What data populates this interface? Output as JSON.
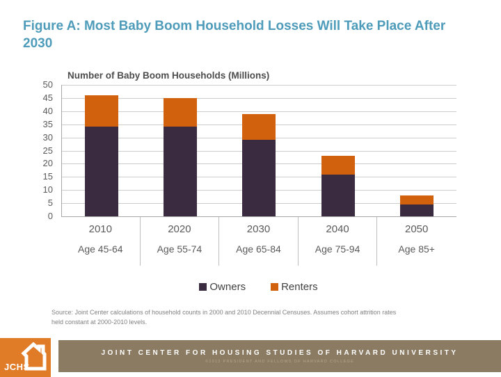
{
  "slide": {
    "title": "Figure A: Most Baby Boom Household Losses Will Take Place After 2030"
  },
  "chart_data": {
    "type": "bar",
    "stacked": true,
    "title": "Number of Baby Boom Households (Millions)",
    "categories": [
      "2010",
      "2020",
      "2030",
      "2040",
      "2050"
    ],
    "category_sublabels": [
      "Age 45-64",
      "Age 55-74",
      "Age 65-84",
      "Age 75-94",
      "Age 85+"
    ],
    "series": [
      {
        "name": "Owners",
        "color": "#3B2B40",
        "values": [
          34,
          34,
          29,
          16,
          4.5
        ]
      },
      {
        "name": "Renters",
        "color": "#D2610D",
        "values": [
          12,
          11,
          10,
          7,
          3.5
        ]
      }
    ],
    "totals": [
      46,
      45,
      39,
      23,
      8
    ],
    "ylim": [
      0,
      50
    ],
    "ytick_step": 5,
    "grid": true,
    "legend_position": "bottom"
  },
  "source": {
    "lines": [
      "Source: Joint Center calculations of household counts in 2000 and 2010 Decennial Censuses. Assumes cohort attrition rates",
      "held constant at 2000-2010 levels."
    ]
  },
  "footer": {
    "logo_text": "JCHS",
    "org_name": "JOINT CENTER FOR HOUSING STUDIES OF HARVARD UNIVERSITY",
    "copyright": "©2013 PRESIDENT AND FELLOWS OF HARVARD COLLEGE"
  },
  "colors": {
    "title_accent": "#4E9BBA",
    "owners": "#3B2B40",
    "renters": "#D2610D",
    "footer_bar": "#8B7B63",
    "logo_orange": "#E07B27",
    "gridline": "#cccccc"
  }
}
